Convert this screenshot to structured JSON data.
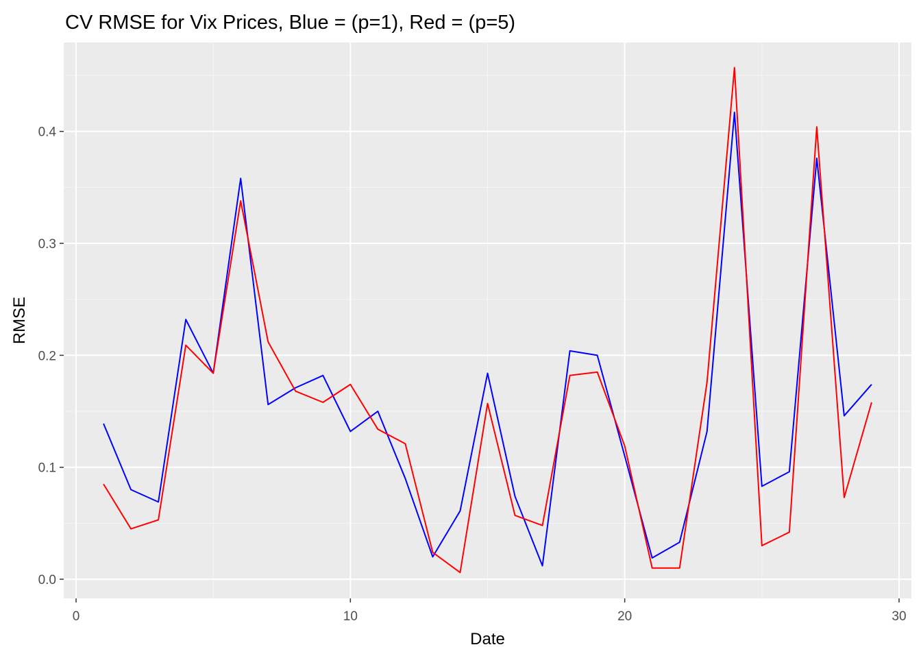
{
  "chart_data": {
    "type": "line",
    "title": "CV RMSE for Vix Prices, Blue = (p=1), Red = (p=5)",
    "xlabel": "Date",
    "ylabel": "RMSE",
    "xlim": [
      -0.45,
      30.45
    ],
    "ylim": [
      -0.0171,
      0.4794
    ],
    "x_ticks": [
      0,
      10,
      20,
      30
    ],
    "x_tick_labels": [
      "0",
      "10",
      "20",
      "30"
    ],
    "y_ticks": [
      0.0,
      0.1,
      0.2,
      0.3,
      0.4
    ],
    "y_tick_labels": [
      "0.0",
      "0.1",
      "0.2",
      "0.3",
      "0.4"
    ],
    "grid": true,
    "background": "#ebebeb",
    "x": [
      1,
      2,
      3,
      4,
      5,
      6,
      7,
      8,
      9,
      10,
      11,
      12,
      13,
      14,
      15,
      16,
      17,
      18,
      19,
      20,
      21,
      22,
      23,
      24,
      25,
      26,
      27,
      28,
      29
    ],
    "series": [
      {
        "color": "#0000ff",
        "values": [
          0.139,
          0.08,
          0.069,
          0.232,
          0.184,
          0.358,
          0.156,
          0.171,
          0.182,
          0.132,
          0.15,
          0.09,
          0.02,
          0.061,
          0.184,
          0.074,
          0.012,
          0.204,
          0.2,
          0.11,
          0.019,
          0.033,
          0.132,
          0.417,
          0.083,
          0.096,
          0.376,
          0.146,
          0.174
        ]
      },
      {
        "color": "#ff0000",
        "values": [
          0.085,
          0.045,
          0.053,
          0.209,
          0.184,
          0.338,
          0.212,
          0.168,
          0.158,
          0.174,
          0.134,
          0.121,
          0.024,
          0.006,
          0.157,
          0.057,
          0.048,
          0.182,
          0.185,
          0.119,
          0.01,
          0.01,
          0.176,
          0.457,
          0.03,
          0.042,
          0.404,
          0.073,
          0.158
        ]
      }
    ]
  }
}
